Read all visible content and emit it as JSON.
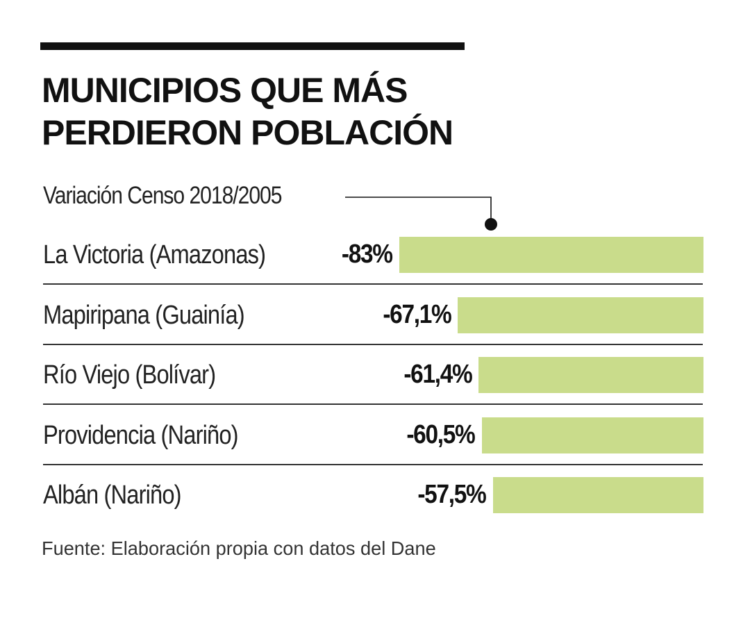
{
  "header": {
    "title_line_1": "MUNICIPIOS QUE MÁS",
    "title_line_2": "PERDIERON POBLACIÓN"
  },
  "subtitle": "Variación Censo 2018/2005",
  "source": "Fuente: Elaboración propia con datos del Dane",
  "colors": {
    "bar": "#c9dc8b",
    "text": "#111111",
    "rule": "#111111"
  },
  "chart_data": {
    "type": "bar",
    "orientation": "horizontal",
    "title": "MUNICIPIOS QUE MÁS PERDIERON POBLACIÓN",
    "subtitle": "Variación Censo 2018/2005",
    "unit": "%",
    "categories": [
      "La Victoria (Amazonas)",
      "Mapiripana (Guainía)",
      "Río Viejo (Bolívar)",
      "Providencia (Nariño)",
      "Albán (Nariño)"
    ],
    "values": [
      -83,
      -67.1,
      -61.4,
      -60.5,
      -57.5
    ],
    "value_labels": [
      "-83%",
      "-67,1%",
      "-61,4%",
      "-60,5%",
      "-57,5%"
    ],
    "xlim": [
      0,
      -83
    ],
    "source": "Fuente: Elaboración propia con datos del Dane"
  }
}
